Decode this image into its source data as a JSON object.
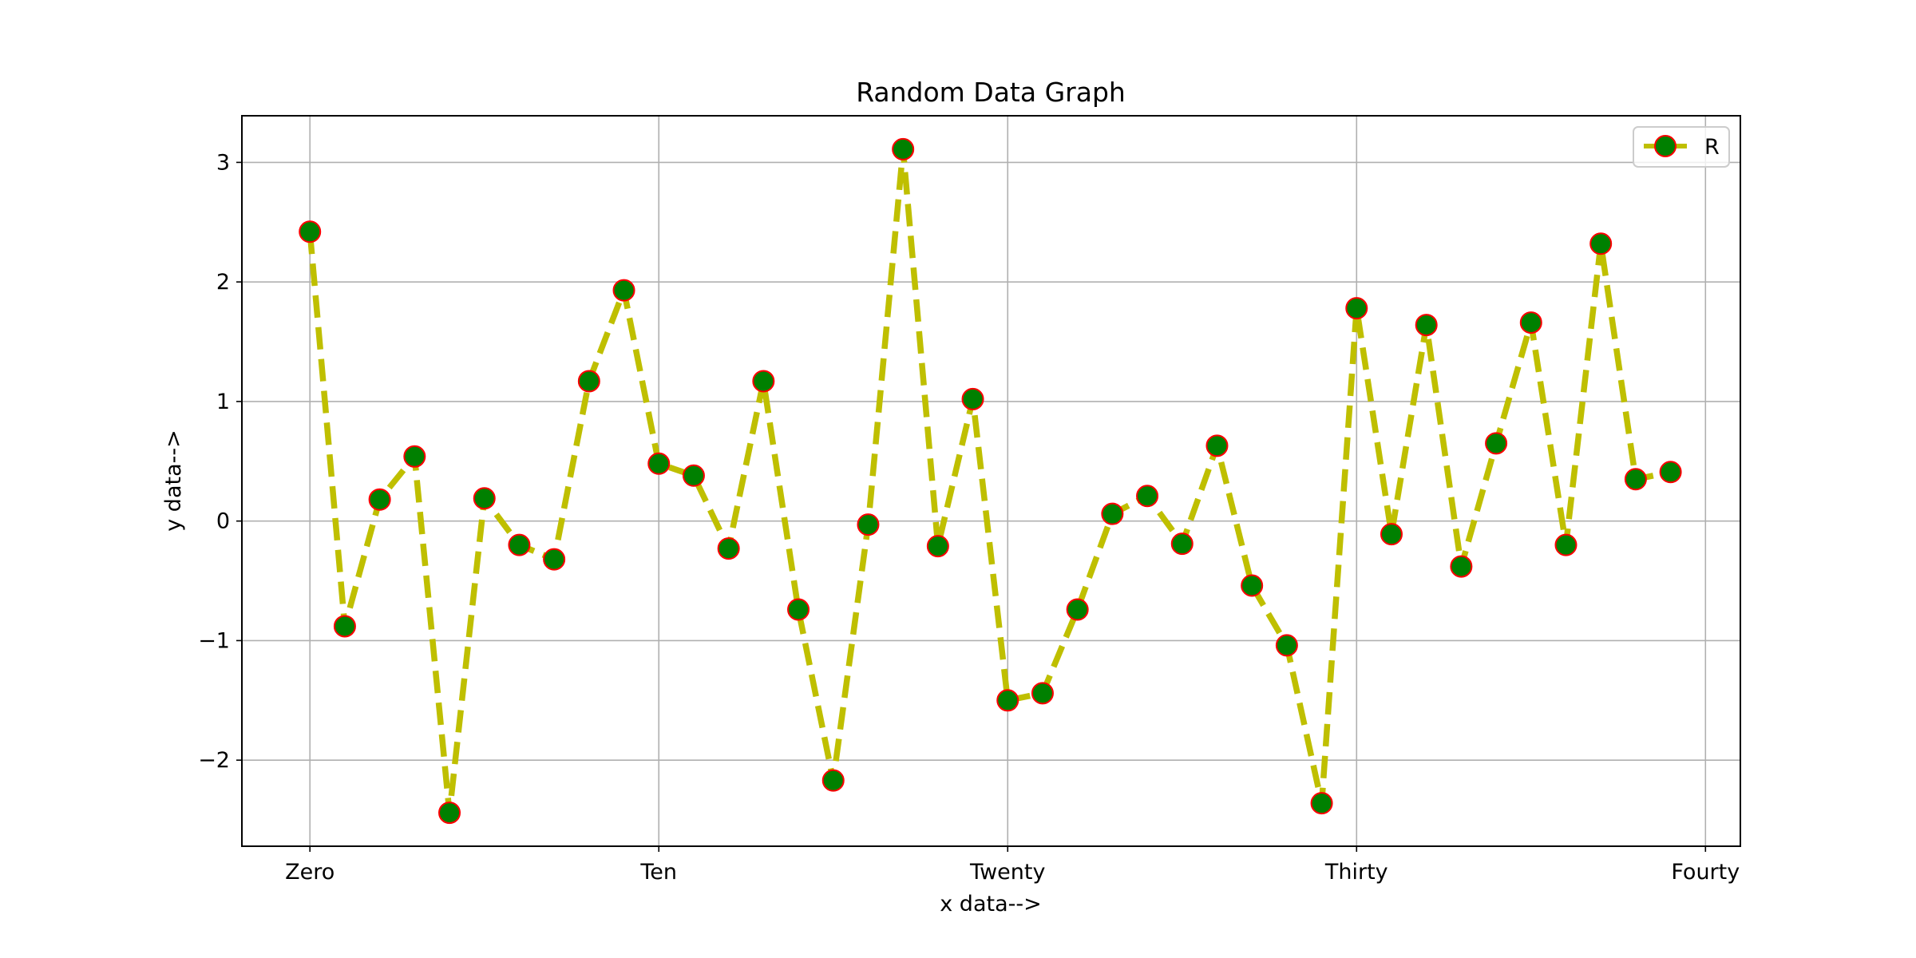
{
  "chart_data": {
    "type": "line",
    "title": "Random Data Graph",
    "xlabel": "x data-->",
    "ylabel": "y data-->",
    "xlim": [
      -1.95,
      41
    ],
    "ylim": [
      -2.72,
      3.39
    ],
    "xticks": [
      0,
      10,
      20,
      30,
      40
    ],
    "xtick_labels": [
      "Zero",
      "Ten",
      "Twenty",
      "Thirty",
      "Fourty"
    ],
    "yticks": [
      -2,
      -1,
      0,
      1,
      2,
      3
    ],
    "ytick_labels": [
      "−2",
      "−1",
      "0",
      "1",
      "2",
      "3"
    ],
    "grid": true,
    "legend_position": "top-right",
    "style": {
      "line_color": "#bfbf00",
      "line_style": "dashed",
      "marker": "circle",
      "marker_face": "#008000",
      "marker_edge": "#ff0000"
    },
    "series": [
      {
        "name": "R",
        "x": [
          0,
          1,
          2,
          3,
          4,
          5,
          6,
          7,
          8,
          9,
          10,
          11,
          12,
          13,
          14,
          15,
          16,
          17,
          18,
          19,
          20,
          21,
          22,
          23,
          24,
          25,
          26,
          27,
          28,
          29,
          30,
          31,
          32,
          33,
          34,
          35,
          36,
          37,
          38,
          39
        ],
        "y": [
          2.42,
          -0.88,
          0.18,
          0.54,
          -2.44,
          0.19,
          -0.2,
          -0.32,
          1.17,
          1.93,
          0.48,
          0.38,
          -0.23,
          1.17,
          -0.74,
          -2.17,
          -0.03,
          3.11,
          -0.21,
          1.02,
          -1.5,
          -1.44,
          -0.74,
          0.06,
          0.21,
          -0.19,
          0.63,
          -0.54,
          -1.04,
          -2.36,
          1.78,
          -0.11,
          1.64,
          -0.38,
          0.65,
          1.66,
          -0.2,
          2.32,
          0.35,
          0.41
        ]
      }
    ]
  }
}
